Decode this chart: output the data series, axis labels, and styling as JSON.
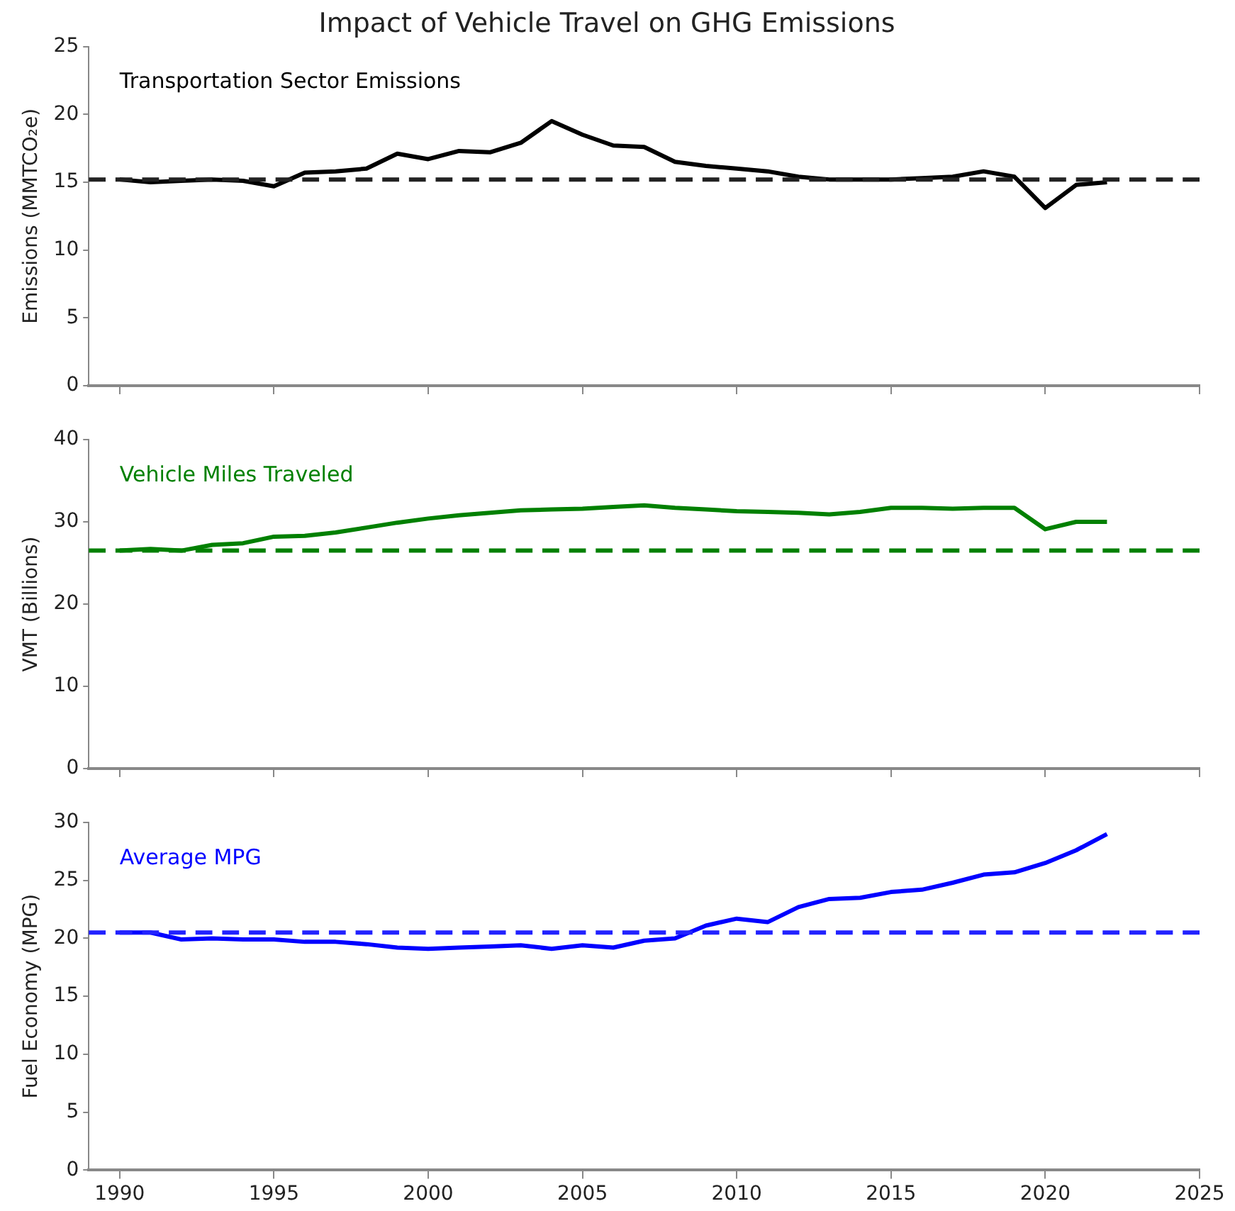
{
  "chart_data": [
    {
      "type": "line",
      "title": "Impact of Vehicle Travel on GHG Emissions",
      "ylabel": "Emissions (MMTCO₂e)",
      "x": [
        1990,
        1991,
        1992,
        1993,
        1994,
        1995,
        1996,
        1997,
        1998,
        1999,
        2000,
        2001,
        2002,
        2003,
        2004,
        2005,
        2006,
        2007,
        2008,
        2009,
        2010,
        2011,
        2012,
        2013,
        2014,
        2015,
        2016,
        2017,
        2018,
        2019,
        2020,
        2021,
        2022
      ],
      "xlim": [
        1989,
        2025
      ],
      "xticks": [
        1990,
        1995,
        2000,
        2005,
        2010,
        2015,
        2020,
        2025
      ],
      "ylim": [
        0,
        25
      ],
      "yticks": [
        0,
        5,
        10,
        15,
        20,
        25
      ],
      "tick_labels": "y",
      "grid": false,
      "legend": false,
      "marker": "none",
      "series": [
        {
          "name": "Transportation Sector Emissions",
          "color": "#000000",
          "values": [
            15.2,
            15.0,
            15.1,
            15.2,
            15.1,
            14.7,
            15.7,
            15.8,
            16.0,
            17.1,
            16.7,
            17.3,
            17.2,
            17.9,
            19.5,
            18.5,
            17.7,
            17.6,
            16.5,
            16.2,
            16.0,
            15.8,
            15.4,
            15.2,
            15.2,
            15.2,
            15.3,
            15.4,
            15.8,
            15.4,
            13.1,
            14.8,
            15.0
          ]
        }
      ],
      "ref_lines": [
        {
          "axis": "y",
          "value": 15.2,
          "color": "#222222",
          "line_style": "dashed"
        }
      ]
    },
    {
      "type": "line",
      "ylabel": "VMT (Billions)",
      "x": [
        1990,
        1991,
        1992,
        1993,
        1994,
        1995,
        1996,
        1997,
        1998,
        1999,
        2000,
        2001,
        2002,
        2003,
        2004,
        2005,
        2006,
        2007,
        2008,
        2009,
        2010,
        2011,
        2012,
        2013,
        2014,
        2015,
        2016,
        2017,
        2018,
        2019,
        2020,
        2021,
        2022
      ],
      "xlim": [
        1989,
        2025
      ],
      "xticks": [
        1990,
        1995,
        2000,
        2005,
        2010,
        2015,
        2020,
        2025
      ],
      "ylim": [
        0,
        40
      ],
      "yticks": [
        0,
        10,
        20,
        30,
        40
      ],
      "tick_labels": "y",
      "grid": false,
      "legend": false,
      "marker": "none",
      "series": [
        {
          "name": "Vehicle Miles Traveled",
          "color": "#008000",
          "values": [
            26.5,
            26.7,
            26.5,
            27.2,
            27.4,
            28.2,
            28.3,
            28.7,
            29.3,
            29.9,
            30.4,
            30.8,
            31.1,
            31.4,
            31.5,
            31.6,
            31.8,
            32.0,
            31.7,
            31.5,
            31.3,
            31.2,
            31.1,
            30.9,
            31.2,
            31.7,
            31.7,
            31.6,
            31.7,
            31.7,
            29.1,
            30.0,
            30.0
          ]
        }
      ],
      "ref_lines": [
        {
          "axis": "y",
          "value": 26.5,
          "color": "#008000",
          "line_style": "dashed"
        }
      ]
    },
    {
      "type": "line",
      "ylabel": "Fuel Economy (MPG)",
      "x": [
        1990,
        1991,
        1992,
        1993,
        1994,
        1995,
        1996,
        1997,
        1998,
        1999,
        2000,
        2001,
        2002,
        2003,
        2004,
        2005,
        2006,
        2007,
        2008,
        2009,
        2010,
        2011,
        2012,
        2013,
        2014,
        2015,
        2016,
        2017,
        2018,
        2019,
        2020,
        2021,
        2022
      ],
      "xlim": [
        1989,
        2025
      ],
      "xticks": [
        1990,
        1995,
        2000,
        2005,
        2010,
        2015,
        2020,
        2025
      ],
      "ylim": [
        0,
        30
      ],
      "yticks": [
        0,
        5,
        10,
        15,
        20,
        25,
        30
      ],
      "grid": false,
      "legend": false,
      "marker": "none",
      "series": [
        {
          "name": "Average MPG",
          "color": "#0000ff",
          "values": [
            20.5,
            20.5,
            19.9,
            20.0,
            19.9,
            19.9,
            19.7,
            19.7,
            19.5,
            19.2,
            19.1,
            19.2,
            19.3,
            19.4,
            19.1,
            19.4,
            19.2,
            19.8,
            20.0,
            21.1,
            21.7,
            21.4,
            22.7,
            23.4,
            23.5,
            24.0,
            24.2,
            24.8,
            25.5,
            25.7,
            26.5,
            27.6,
            29.0
          ]
        }
      ],
      "ref_lines": [
        {
          "axis": "y",
          "value": 20.5,
          "color": "#2222ff",
          "line_style": "dashed"
        }
      ]
    }
  ]
}
